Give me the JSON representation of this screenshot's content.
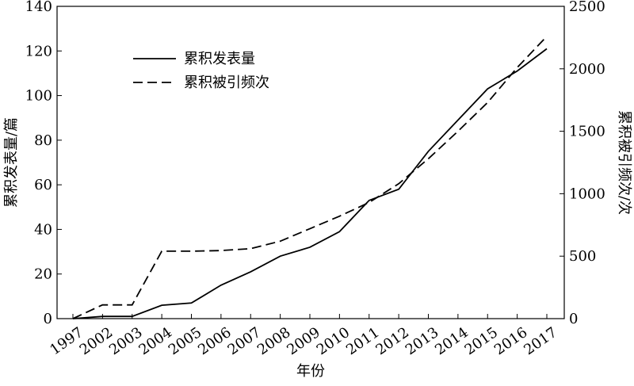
{
  "chart_data": {
    "type": "line",
    "x_label": "年份",
    "y_label": "累积发表量/篇",
    "y2_label": "累积被引频次/次",
    "categories": [
      "1997",
      "2002",
      "2003",
      "2004",
      "2005",
      "2006",
      "2007",
      "2008",
      "2009",
      "2010",
      "2011",
      "2012",
      "2013",
      "2014",
      "2015",
      "2016",
      "2017"
    ],
    "series": [
      {
        "name": "累积发表量",
        "color": "#000000",
        "dash": "solid",
        "axis": "y",
        "values": [
          0,
          1,
          1,
          6,
          7,
          15,
          21,
          28,
          32,
          39,
          53,
          58,
          75,
          89,
          103,
          111,
          121
        ]
      },
      {
        "name": "累积被引频次",
        "color": "#000000",
        "dash": "dashed",
        "axis": "y2",
        "values": [
          0,
          110,
          110,
          540,
          540,
          545,
          560,
          620,
          720,
          820,
          930,
          1080,
          1280,
          1500,
          1730,
          2010,
          2260
        ]
      }
    ],
    "ylim": [
      0,
      140
    ],
    "yticks": [
      0,
      20,
      40,
      60,
      80,
      100,
      120,
      140
    ],
    "y2lim": [
      0,
      2500
    ],
    "y2ticks": [
      0,
      500,
      1000,
      1500,
      2000,
      2500
    ],
    "legend": "upper left"
  }
}
